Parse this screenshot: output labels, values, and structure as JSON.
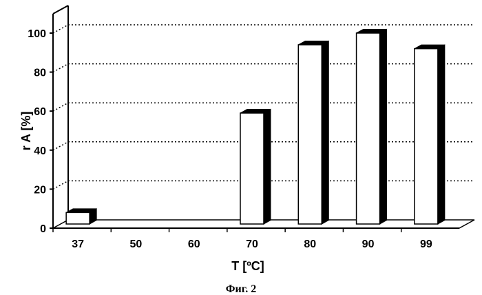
{
  "chart_data": {
    "type": "bar",
    "style": "3d",
    "categories": [
      "37",
      "50",
      "60",
      "70",
      "80",
      "90",
      "99"
    ],
    "values": [
      8,
      0,
      0,
      59,
      94,
      100,
      92
    ],
    "ylabel": "r A [%]",
    "xlabel": "T [ºC]",
    "ylim": [
      0,
      100
    ],
    "yticks": [
      "0",
      "20",
      "40",
      "60",
      "80",
      "100"
    ],
    "grid": "horizontal dotted",
    "colors": {
      "bar_face": "#ffffff",
      "bar_side": "#000000",
      "grid": "#000000"
    }
  },
  "caption": "Фиг. 2"
}
